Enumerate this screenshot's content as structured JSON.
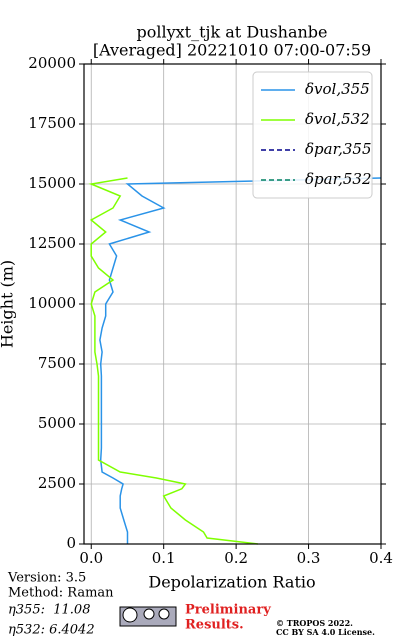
{
  "chart_data": {
    "type": "line",
    "orientation": "horizontal",
    "title": [
      "pollyxt_tjk at Dushanbe",
      "[Averaged] 20221010 07:00-07:59"
    ],
    "xlabel": "Depolarization Ratio",
    "ylabel": "Height (m)",
    "heights": [
      0,
      250,
      500,
      1000,
      1500,
      2000,
      2300,
      2500,
      2750,
      3000,
      3500,
      4000,
      4500,
      5000,
      5500,
      6000,
      6500,
      7000,
      7500,
      8000,
      8500,
      9000,
      9500,
      10000,
      10500,
      11000,
      11500,
      12000,
      12500,
      13000,
      13500,
      14000,
      14500,
      15000,
      15250
    ],
    "series": [
      {
        "name": "δvol,355",
        "color": "#2a93e8",
        "dash": false,
        "values": [
          0.05,
          0.05,
          0.05,
          0.045,
          0.04,
          0.04,
          0.042,
          0.044,
          0.03,
          0.015,
          0.013,
          0.014,
          0.014,
          0.014,
          0.014,
          0.014,
          0.014,
          0.014,
          0.013,
          0.015,
          0.012,
          0.015,
          0.02,
          0.02,
          0.03,
          0.025,
          0.03,
          0.035,
          0.025,
          0.08,
          0.04,
          0.1,
          0.07,
          0.05,
          0.4
        ]
      },
      {
        "name": "δvol,532",
        "color": "#7fff00",
        "dash": false,
        "values": [
          0.23,
          0.16,
          0.155,
          0.13,
          0.11,
          0.1,
          0.125,
          0.13,
          0.09,
          0.04,
          0.01,
          0.01,
          0.01,
          0.01,
          0.01,
          0.01,
          0.01,
          0.01,
          0.008,
          0.005,
          0.005,
          0.005,
          0.005,
          0.0,
          0.005,
          0.03,
          0.01,
          0.0,
          0.0,
          0.02,
          0.0,
          0.03,
          0.04,
          0.0,
          0.05
        ]
      },
      {
        "name": "δpar,355",
        "color": "#00008b",
        "dash": true,
        "values": [
          null,
          null,
          null,
          null,
          null,
          null,
          null,
          null,
          null,
          null,
          null,
          null,
          null,
          null,
          null,
          null,
          null,
          null,
          null,
          null,
          null,
          null,
          null,
          null,
          null,
          null,
          null,
          null,
          null,
          null,
          null,
          null,
          null,
          null,
          null
        ]
      },
      {
        "name": "δpar,532",
        "color": "#008060",
        "dash": true,
        "values": [
          null,
          null,
          null,
          null,
          null,
          null,
          null,
          null,
          null,
          null,
          null,
          null,
          null,
          null,
          null,
          null,
          null,
          null,
          null,
          null,
          null,
          null,
          null,
          null,
          null,
          null,
          null,
          null,
          null,
          null,
          null,
          null,
          null,
          null,
          null
        ]
      }
    ],
    "xlim": [
      -0.01,
      0.4
    ],
    "xticks": [
      {
        "value": 0,
        "label": "0.0"
      },
      0.1,
      0.2,
      0.3,
      0.4
    ],
    "ylim": [
      0,
      20000
    ],
    "yticks": [
      0,
      2500,
      5000,
      7500,
      10000,
      12500,
      15000,
      17500,
      20000
    ],
    "grid": true,
    "legend": "upper right"
  },
  "footer": {
    "version": "Version: 3.5",
    "method": "Method: Raman",
    "eta355": "η355:  11.08",
    "eta532": "η532: 6.4042",
    "preliminary": [
      "Preliminary",
      "Results."
    ],
    "copyright": [
      "© TROPOS 2022.",
      "CC BY SA 4.0 License."
    ]
  }
}
